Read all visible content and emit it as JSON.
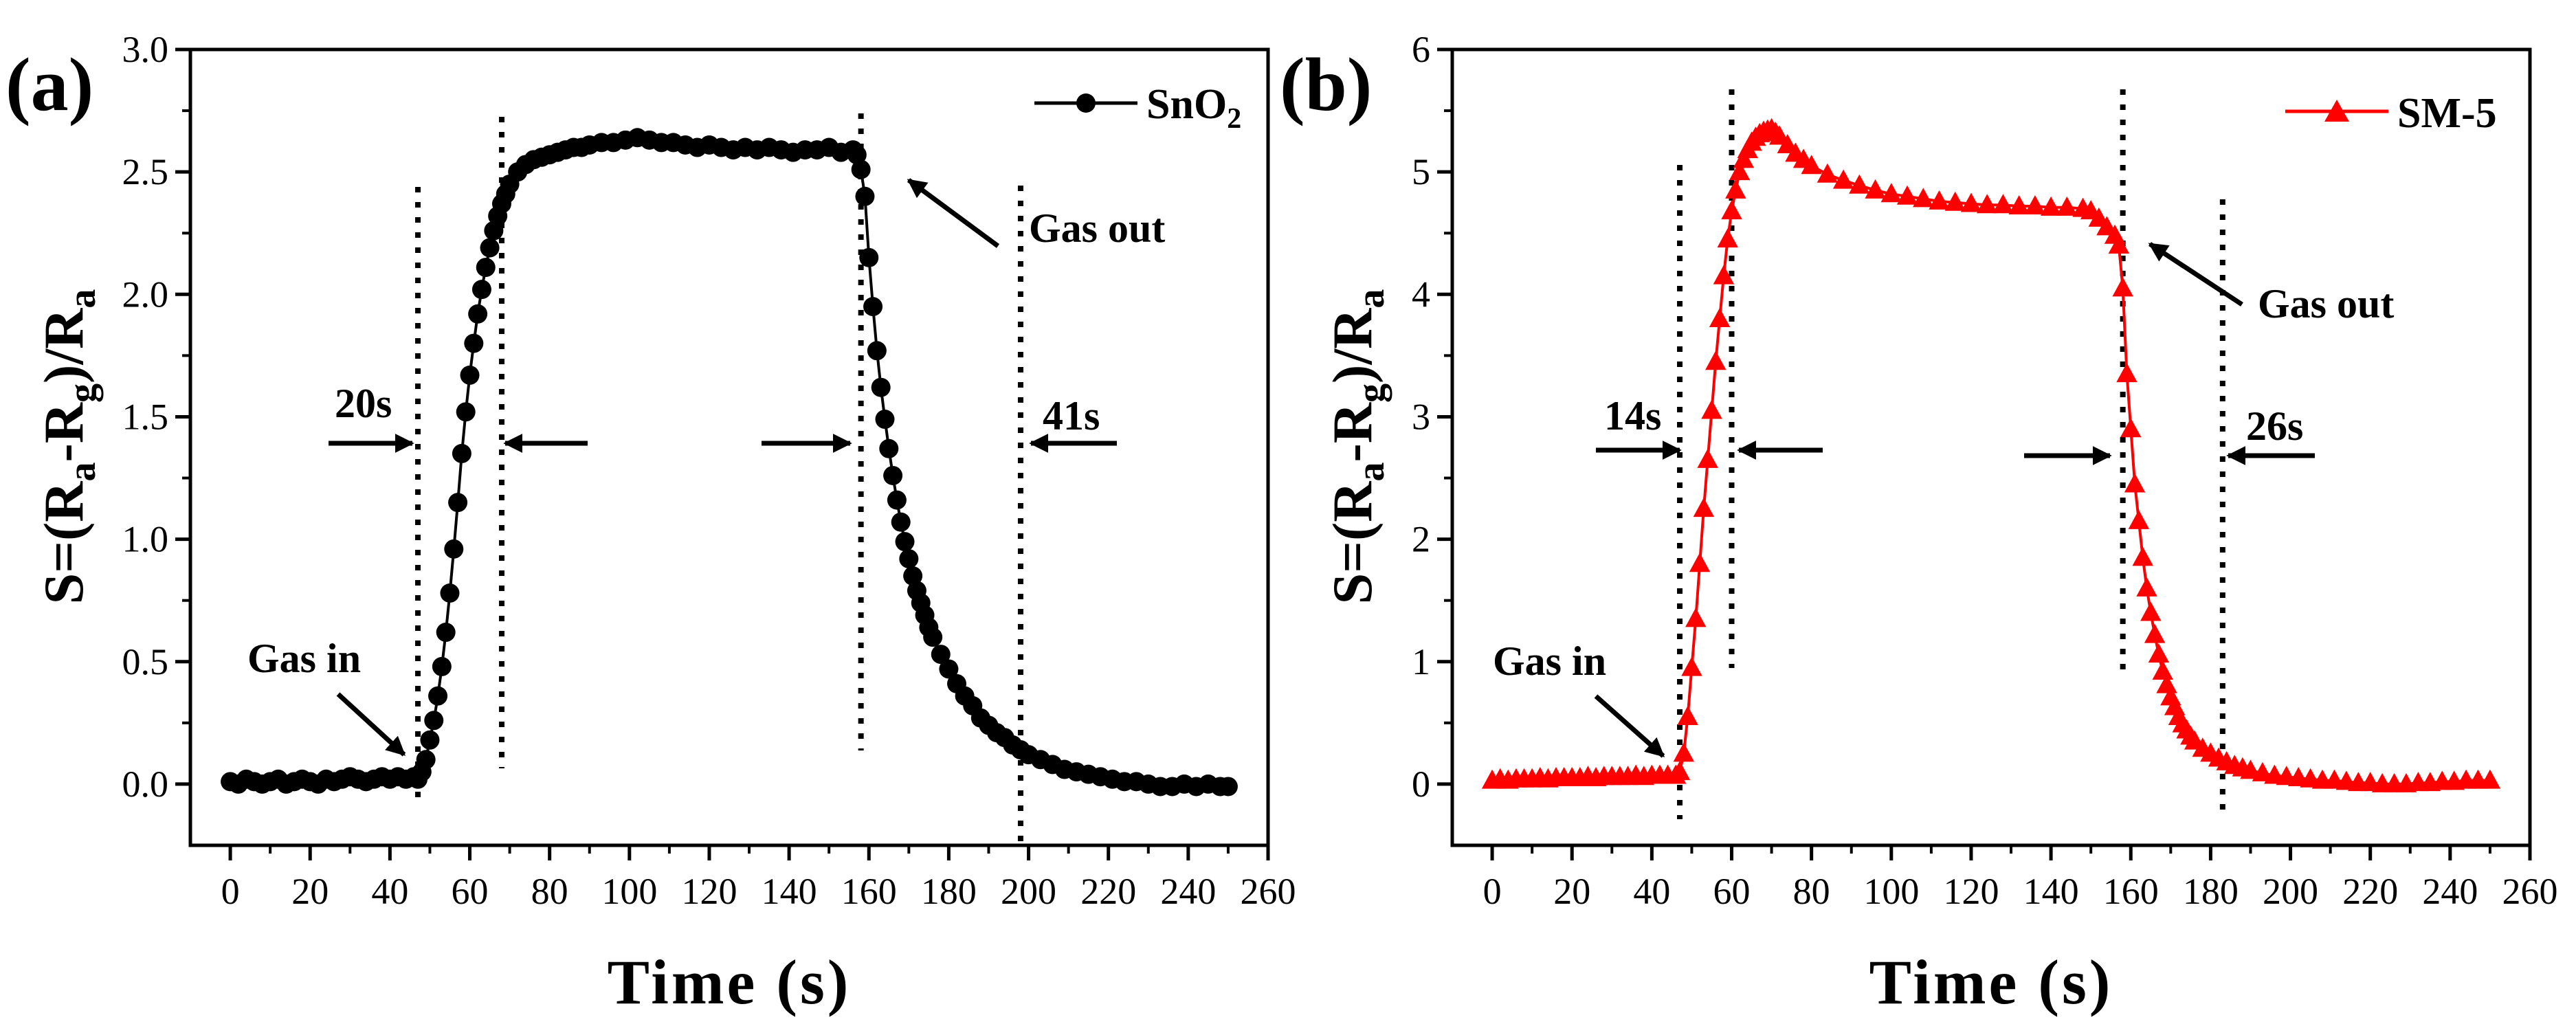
{
  "colors": {
    "snO2": "#000000",
    "sm5": "#ff0000",
    "axis": "#000000"
  },
  "panels": [
    {
      "label": "(a)",
      "ylabel": "S=(Ra-Rg)/Ra",
      "ylabel_parts": {
        "s": "S=(R",
        "a1": "a",
        "minus": "-R",
        "g": "g",
        "close": ")/R",
        "a2": "a"
      },
      "xlabel": "Time (s)",
      "gas_in": "Gas in",
      "gas_out": "Gas out",
      "response_time": "20s",
      "recovery_time": "41s",
      "xticks": [
        "0",
        "20",
        "40",
        "60",
        "80",
        "100",
        "120",
        "140",
        "160",
        "180",
        "200",
        "220",
        "240",
        "260"
      ],
      "yticks": [
        "0.0",
        "0.5",
        "1.0",
        "1.5",
        "2.0",
        "2.5",
        "3.0"
      ]
    },
    {
      "label": "(b)",
      "ylabel": "S=(Ra-Rg)/Ra",
      "ylabel_parts": {
        "s": "S=(R",
        "a1": "a",
        "minus": "-R",
        "g": "g",
        "close": ")/R",
        "a2": "a"
      },
      "xlabel": "Time (s)",
      "gas_in": "Gas in",
      "gas_out": "Gas out",
      "response_time": "14s",
      "recovery_time": "26s",
      "xticks": [
        "0",
        "20",
        "40",
        "60",
        "80",
        "100",
        "120",
        "140",
        "160",
        "180",
        "200",
        "220",
        "240",
        "260"
      ],
      "yticks": [
        "0",
        "1",
        "2",
        "3",
        "4",
        "5",
        "6"
      ]
    }
  ],
  "chart_data": [
    {
      "type": "scatter",
      "title": "(a)",
      "xlabel": "Time (s)",
      "ylabel": "S=(Ra-Rg)/Ra",
      "xlim": [
        -10,
        260
      ],
      "ylim": [
        -0.25,
        3.0
      ],
      "legend": {
        "label": "SnO",
        "sub": "2",
        "placement": "top-right"
      },
      "series": [
        {
          "name": "SnO2",
          "marker": "circle",
          "x": [
            0,
            2,
            4,
            6,
            8,
            10,
            12,
            14,
            16,
            18,
            20,
            22,
            24,
            26,
            28,
            30,
            32,
            34,
            36,
            38,
            40,
            42,
            44,
            46,
            47,
            48,
            49,
            50,
            51,
            52,
            53,
            54,
            55,
            56,
            57,
            58,
            59,
            60,
            61,
            62,
            63,
            64,
            65,
            66,
            67,
            68,
            69,
            70,
            72,
            74,
            76,
            78,
            80,
            82,
            84,
            86,
            88,
            90,
            93,
            96,
            99,
            102,
            105,
            108,
            111,
            114,
            117,
            120,
            123,
            126,
            129,
            132,
            135,
            138,
            141,
            144,
            147,
            150,
            153,
            156,
            157,
            158,
            159,
            160,
            161,
            162,
            163,
            164,
            165,
            166,
            167,
            168,
            169,
            170,
            171,
            172,
            173,
            174,
            175,
            176,
            178,
            180,
            182,
            184,
            186,
            188,
            190,
            192,
            194,
            196,
            198,
            200,
            203,
            206,
            209,
            212,
            215,
            218,
            221,
            224,
            227,
            230,
            233,
            236,
            239,
            242,
            245,
            248,
            250
          ],
          "y": [
            0.01,
            0.0,
            0.02,
            0.01,
            0.0,
            0.01,
            0.02,
            0.0,
            0.01,
            0.02,
            0.01,
            0.0,
            0.02,
            0.01,
            0.02,
            0.03,
            0.02,
            0.01,
            0.02,
            0.03,
            0.02,
            0.03,
            0.02,
            0.03,
            0.02,
            0.05,
            0.1,
            0.18,
            0.26,
            0.36,
            0.48,
            0.62,
            0.78,
            0.96,
            1.15,
            1.35,
            1.52,
            1.67,
            1.8,
            1.92,
            2.02,
            2.11,
            2.19,
            2.26,
            2.32,
            2.37,
            2.41,
            2.45,
            2.5,
            2.53,
            2.55,
            2.56,
            2.57,
            2.58,
            2.59,
            2.6,
            2.6,
            2.61,
            2.62,
            2.62,
            2.63,
            2.64,
            2.63,
            2.62,
            2.62,
            2.61,
            2.6,
            2.61,
            2.6,
            2.59,
            2.6,
            2.59,
            2.6,
            2.59,
            2.58,
            2.59,
            2.59,
            2.6,
            2.58,
            2.59,
            2.57,
            2.51,
            2.4,
            2.15,
            1.95,
            1.77,
            1.62,
            1.49,
            1.37,
            1.26,
            1.16,
            1.07,
            0.99,
            0.92,
            0.85,
            0.79,
            0.74,
            0.69,
            0.64,
            0.6,
            0.53,
            0.47,
            0.41,
            0.36,
            0.32,
            0.27,
            0.24,
            0.21,
            0.19,
            0.16,
            0.14,
            0.12,
            0.1,
            0.08,
            0.06,
            0.05,
            0.04,
            0.03,
            0.02,
            0.01,
            0.01,
            0.0,
            -0.01,
            -0.01,
            0.0,
            -0.01,
            0.0,
            -0.01,
            -0.01
          ]
        }
      ],
      "markers": {
        "vlines": [
          47,
          68,
          158,
          198
        ],
        "response_time": "20s",
        "recovery_time": "41s",
        "gas_in_label": "Gas in",
        "gas_out_label": "Gas out"
      }
    },
    {
      "type": "scatter",
      "title": "(b)",
      "xlabel": "Time (s)",
      "ylabel": "S=(Ra-Rg)/Ra",
      "xlim": [
        -10,
        260
      ],
      "ylim": [
        -0.5,
        6.0
      ],
      "legend": {
        "label": "SM-5",
        "placement": "top-right"
      },
      "series": [
        {
          "name": "SM-5",
          "marker": "triangle",
          "x": [
            0,
            2,
            4,
            6,
            8,
            10,
            12,
            14,
            16,
            18,
            20,
            22,
            24,
            26,
            28,
            30,
            32,
            34,
            36,
            38,
            40,
            42,
            44,
            46,
            47,
            48,
            49,
            50,
            51,
            52,
            53,
            54,
            55,
            56,
            57,
            58,
            59,
            60,
            61,
            62,
            63,
            64,
            65,
            66,
            67,
            68,
            69,
            70,
            71,
            72,
            74,
            76,
            78,
            80,
            84,
            88,
            92,
            96,
            100,
            104,
            108,
            112,
            116,
            120,
            124,
            128,
            132,
            136,
            140,
            144,
            148,
            150,
            152,
            154,
            156,
            157,
            158,
            159,
            160,
            161,
            162,
            163,
            164,
            165,
            166,
            167,
            168,
            169,
            170,
            171,
            172,
            173,
            174,
            175,
            176,
            178,
            180,
            182,
            184,
            186,
            188,
            190,
            193,
            196,
            199,
            202,
            205,
            208,
            211,
            214,
            217,
            220,
            223,
            226,
            229,
            232,
            235,
            238,
            241,
            244,
            247,
            250
          ],
          "y": [
            0.03,
            0.04,
            0.03,
            0.04,
            0.04,
            0.04,
            0.05,
            0.04,
            0.05,
            0.05,
            0.05,
            0.05,
            0.06,
            0.05,
            0.06,
            0.06,
            0.06,
            0.06,
            0.07,
            0.06,
            0.07,
            0.07,
            0.07,
            0.07,
            0.1,
            0.25,
            0.55,
            0.95,
            1.35,
            1.8,
            2.25,
            2.65,
            3.05,
            3.45,
            3.8,
            4.15,
            4.45,
            4.68,
            4.85,
            5.0,
            5.1,
            5.18,
            5.24,
            5.28,
            5.31,
            5.33,
            5.34,
            5.35,
            5.32,
            5.29,
            5.22,
            5.15,
            5.1,
            5.05,
            4.98,
            4.93,
            4.89,
            4.85,
            4.82,
            4.8,
            4.78,
            4.76,
            4.75,
            4.74,
            4.73,
            4.73,
            4.72,
            4.72,
            4.71,
            4.71,
            4.7,
            4.68,
            4.62,
            4.55,
            4.48,
            4.4,
            4.05,
            3.35,
            2.9,
            2.45,
            2.15,
            1.85,
            1.6,
            1.4,
            1.22,
            1.06,
            0.92,
            0.81,
            0.71,
            0.63,
            0.55,
            0.49,
            0.44,
            0.39,
            0.35,
            0.29,
            0.25,
            0.21,
            0.18,
            0.15,
            0.13,
            0.11,
            0.09,
            0.07,
            0.06,
            0.05,
            0.04,
            0.03,
            0.03,
            0.02,
            0.01,
            0.01,
            0.0,
            0.0,
            0.0,
            0.01,
            0.01,
            0.02,
            0.02,
            0.03,
            0.03,
            0.03
          ]
        }
      ],
      "markers": {
        "vlines": [
          47,
          60,
          158,
          183
        ],
        "response_time": "14s",
        "recovery_time": "26s",
        "gas_in_label": "Gas in",
        "gas_out_label": "Gas out"
      }
    }
  ]
}
